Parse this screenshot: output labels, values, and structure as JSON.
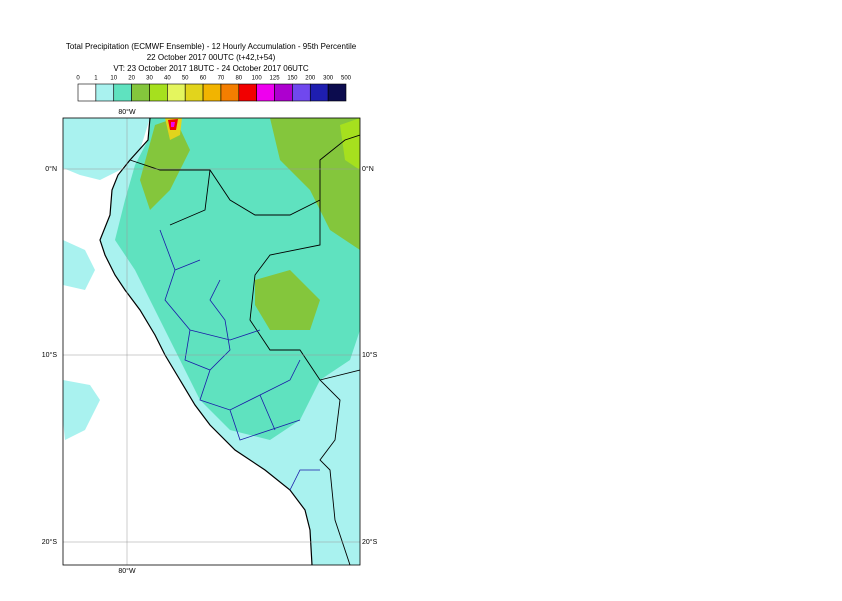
{
  "title": {
    "line1": "Total Precipitation (ECMWF Ensemble) - 12 Hourly Accumulation - 95th Percentile",
    "line2": "22 October 2017 00UTC (t+42,t+54)",
    "line3": "VT: 23 October 2017 18UTC - 24 October 2017 06UTC"
  },
  "legend": {
    "thresholds": [
      0,
      1,
      10,
      20,
      30,
      40,
      50,
      60,
      70,
      80,
      100,
      125,
      150,
      200,
      300,
      500
    ],
    "colors": [
      "#ffffff",
      "#a9f2ef",
      "#5fe2bf",
      "#84c63c",
      "#a6e01e",
      "#e4f55e",
      "#e2d41c",
      "#f2b400",
      "#f47e00",
      "#f20000",
      "#ee00ee",
      "#ad00cf",
      "#7048ee",
      "#1e1eb0",
      "#0c0c4e"
    ]
  },
  "map": {
    "meridian_label_top": "80°W",
    "meridian_label_bottom": "80°W",
    "parallel_labels": [
      "0°N",
      "10°S",
      "20°S"
    ]
  }
}
